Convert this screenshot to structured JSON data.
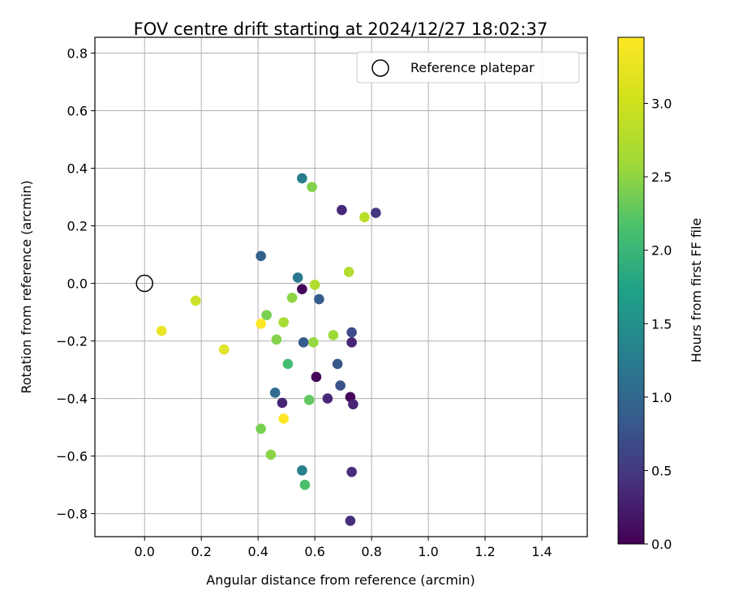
{
  "chart_data": {
    "type": "scatter",
    "title": "FOV centre drift starting at 2024/12/27 18:02:37",
    "xlabel": "Angular distance from reference (arcmin)",
    "ylabel": "Rotation from reference (arcmin)",
    "xlim": [
      -0.175,
      1.56
    ],
    "ylim": [
      -0.88,
      0.855
    ],
    "xticks": [
      0.0,
      0.2,
      0.4,
      0.6,
      0.8,
      1.0,
      1.2,
      1.4
    ],
    "xtick_labels": [
      "0.0",
      "0.2",
      "0.4",
      "0.6",
      "0.8",
      "1.0",
      "1.2",
      "1.4"
    ],
    "yticks": [
      0.8,
      0.6,
      0.4,
      0.2,
      0.0,
      -0.2,
      -0.4,
      -0.6,
      -0.8
    ],
    "ytick_labels": [
      "0.8",
      "0.6",
      "0.4",
      "0.2",
      "0.0",
      "−0.2",
      "−0.4",
      "−0.6",
      "−0.8"
    ],
    "grid": true,
    "legend": {
      "placement": "upper-right",
      "entries": [
        {
          "label": "Reference platepar",
          "marker": "open-circle"
        }
      ]
    },
    "reference_point": {
      "x": 0.0,
      "y": 0.0
    },
    "colorbar": {
      "label": "Hours from first FF file",
      "colormap": "viridis",
      "range": [
        0.0,
        3.45
      ],
      "ticks": [
        0.0,
        0.5,
        1.0,
        1.5,
        2.0,
        2.5,
        3.0
      ],
      "tick_labels": [
        "0.0",
        "0.5",
        "1.0",
        "1.5",
        "2.0",
        "2.5",
        "3.0"
      ]
    },
    "points": [
      {
        "x": 0.555,
        "y": -0.02,
        "hours": 0.05
      },
      {
        "x": 0.605,
        "y": -0.325,
        "hours": 0.05
      },
      {
        "x": 0.725,
        "y": -0.395,
        "hours": 0.05
      },
      {
        "x": 0.73,
        "y": -0.205,
        "hours": 0.35
      },
      {
        "x": 0.735,
        "y": -0.42,
        "hours": 0.35
      },
      {
        "x": 0.485,
        "y": -0.415,
        "hours": 0.35
      },
      {
        "x": 0.645,
        "y": -0.4,
        "hours": 0.4
      },
      {
        "x": 0.73,
        "y": -0.655,
        "hours": 0.45
      },
      {
        "x": 0.725,
        "y": -0.825,
        "hours": 0.45
      },
      {
        "x": 0.695,
        "y": 0.255,
        "hours": 0.4
      },
      {
        "x": 0.815,
        "y": 0.245,
        "hours": 0.55
      },
      {
        "x": 0.73,
        "y": -0.17,
        "hours": 0.8
      },
      {
        "x": 0.69,
        "y": -0.355,
        "hours": 0.85
      },
      {
        "x": 0.68,
        "y": -0.28,
        "hours": 0.95
      },
      {
        "x": 0.56,
        "y": -0.205,
        "hours": 1.0
      },
      {
        "x": 0.615,
        "y": -0.055,
        "hours": 1.0
      },
      {
        "x": 0.41,
        "y": 0.095,
        "hours": 1.05
      },
      {
        "x": 0.46,
        "y": -0.38,
        "hours": 1.2
      },
      {
        "x": 0.54,
        "y": 0.02,
        "hours": 1.4
      },
      {
        "x": 0.555,
        "y": 0.365,
        "hours": 1.45
      },
      {
        "x": 0.555,
        "y": -0.65,
        "hours": 1.5
      },
      {
        "x": 0.505,
        "y": -0.28,
        "hours": 2.4
      },
      {
        "x": 0.565,
        "y": -0.7,
        "hours": 2.45
      },
      {
        "x": 0.58,
        "y": -0.405,
        "hours": 2.6
      },
      {
        "x": 0.41,
        "y": -0.505,
        "hours": 2.75
      },
      {
        "x": 0.43,
        "y": -0.11,
        "hours": 2.75
      },
      {
        "x": 0.465,
        "y": -0.195,
        "hours": 2.8
      },
      {
        "x": 0.59,
        "y": 0.335,
        "hours": 2.8
      },
      {
        "x": 0.445,
        "y": -0.595,
        "hours": 2.85
      },
      {
        "x": 0.52,
        "y": -0.05,
        "hours": 2.85
      },
      {
        "x": 0.595,
        "y": -0.205,
        "hours": 2.9
      },
      {
        "x": 0.665,
        "y": -0.18,
        "hours": 2.95
      },
      {
        "x": 0.49,
        "y": -0.135,
        "hours": 3.0
      },
      {
        "x": 0.6,
        "y": -0.005,
        "hours": 3.05
      },
      {
        "x": 0.72,
        "y": 0.04,
        "hours": 3.05
      },
      {
        "x": 0.775,
        "y": 0.23,
        "hours": 3.1
      },
      {
        "x": 0.18,
        "y": -0.06,
        "hours": 3.2
      },
      {
        "x": 0.28,
        "y": -0.23,
        "hours": 3.3
      },
      {
        "x": 0.06,
        "y": -0.165,
        "hours": 3.35
      },
      {
        "x": 0.49,
        "y": -0.47,
        "hours": 3.45
      },
      {
        "x": 0.41,
        "y": -0.14,
        "hours": 3.45
      }
    ]
  }
}
